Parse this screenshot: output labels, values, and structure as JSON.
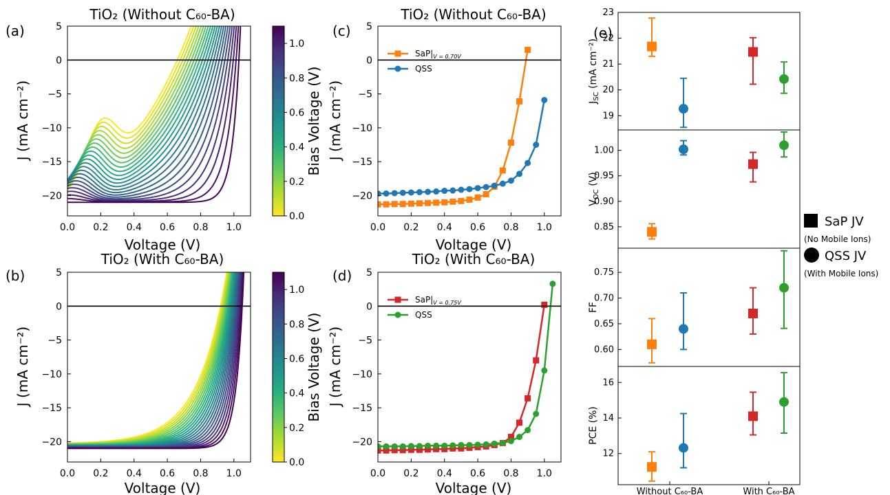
{
  "chart_data": [
    {
      "panel": "(a)",
      "type": "line",
      "title": "TiO₂ (Without C₆₀-BA)",
      "xlabel": "Voltage (V)",
      "ylabel": "J (mA cm⁻²)",
      "xlim": [
        0,
        1.1
      ],
      "ylim": [
        -23,
        5
      ],
      "xticks": [
        "0.0",
        "0.2",
        "0.4",
        "0.6",
        "0.8",
        "1.0"
      ],
      "yticks": [
        "5",
        "0",
        "−5",
        "−10",
        "−15",
        "−20"
      ],
      "xtick_values": [
        0,
        0.2,
        0.4,
        0.6,
        0.8,
        1.0
      ],
      "ytick_values": [
        5,
        0,
        -5,
        -10,
        -15,
        -20
      ],
      "colorbar": {
        "label": "Bias Voltage (V)",
        "ticks": [
          "0.0",
          "0.2",
          "0.4",
          "0.6",
          "0.8",
          "1.0"
        ],
        "tick_values": [
          0,
          0.2,
          0.4,
          0.6,
          0.8,
          1.0
        ],
        "range": [
          0,
          1.1
        ],
        "colormap": "viridis_r"
      },
      "family": {
        "bias_start": 0.0,
        "bias_step": 0.05,
        "bias_count": 23,
        "voc_first": 0.66,
        "voc_last": 1.03,
        "jsc_first": -19.8,
        "jsc_last": -21.0,
        "steep_first": 0.48,
        "steep_last": 0.045,
        "knee_first": 0.22,
        "knee_last": 0.0,
        "knee_amp_first": 11,
        "knee_amp_last": 0
      },
      "zero_line": 0
    },
    {
      "panel": "(b)",
      "type": "line",
      "title": "TiO₂ (With C₆₀-BA)",
      "xlabel": "Voltage (V)",
      "ylabel": "J (mA cm⁻²)",
      "xlim": [
        0,
        1.1
      ],
      "ylim": [
        -23,
        5
      ],
      "xticks": [
        "0.0",
        "0.2",
        "0.4",
        "0.6",
        "0.8",
        "1.0"
      ],
      "yticks": [
        "5",
        "0",
        "−5",
        "−10",
        "−15",
        "−20"
      ],
      "xtick_values": [
        0,
        0.2,
        0.4,
        0.6,
        0.8,
        1.0
      ],
      "ytick_values": [
        5,
        0,
        -5,
        -10,
        -15,
        -20
      ],
      "colorbar": {
        "label": "Bias Voltage (V)",
        "ticks": [
          "0.0",
          "0.2",
          "0.4",
          "0.6",
          "0.8",
          "1.0"
        ],
        "tick_values": [
          0,
          0.2,
          0.4,
          0.6,
          0.8,
          1.0
        ],
        "range": [
          0,
          1.1
        ],
        "colormap": "viridis_r"
      },
      "family": {
        "bias_start": 0.0,
        "bias_step": 0.05,
        "bias_count": 23,
        "voc_first": 0.92,
        "voc_last": 1.05,
        "jsc_first": -20.2,
        "jsc_last": -21.0,
        "steep_first": 0.17,
        "steep_last": 0.045,
        "knee_first": 0.0,
        "knee_last": 0.0,
        "knee_amp_first": 0,
        "knee_amp_last": 0
      },
      "zero_line": 0
    },
    {
      "panel": "(c)",
      "type": "line",
      "title": "TiO₂ (Without C₆₀-BA)",
      "xlabel": "Voltage (V)",
      "ylabel": "J (mA cm⁻²)",
      "xlim": [
        0,
        1.1
      ],
      "ylim": [
        -23,
        5
      ],
      "xticks": [
        "0.0",
        "0.2",
        "0.4",
        "0.6",
        "0.8",
        "1.0"
      ],
      "yticks": [
        "5",
        "0",
        "−5",
        "−10",
        "−15",
        "−20"
      ],
      "xtick_values": [
        0,
        0.2,
        0.4,
        0.6,
        0.8,
        1.0
      ],
      "ytick_values": [
        5,
        0,
        -5,
        -10,
        -15,
        -20
      ],
      "legend_position": "upper-left",
      "zero_line": 0,
      "series": [
        {
          "name": "SaP|V = 0.70V",
          "legend_main": "SaP|",
          "legend_sub": "V = 0.70V",
          "color": "#ff7f0e",
          "marker": "square",
          "x": [
            0.0,
            0.05,
            0.1,
            0.15,
            0.2,
            0.25,
            0.3,
            0.35,
            0.4,
            0.45,
            0.5,
            0.55,
            0.6,
            0.65,
            0.7,
            0.75,
            0.8,
            0.85,
            0.9
          ],
          "y": [
            -21.3,
            -21.3,
            -21.25,
            -21.25,
            -21.2,
            -21.15,
            -21.1,
            -21.05,
            -21.0,
            -20.9,
            -20.8,
            -20.6,
            -20.3,
            -19.8,
            -18.7,
            -16.3,
            -12.2,
            -6.1,
            1.5
          ]
        },
        {
          "name": "QSS",
          "legend_main": "QSS",
          "legend_sub": "",
          "color": "#1f77b4",
          "marker": "circle",
          "x": [
            0.0,
            0.05,
            0.1,
            0.15,
            0.2,
            0.25,
            0.3,
            0.35,
            0.4,
            0.45,
            0.5,
            0.55,
            0.6,
            0.65,
            0.7,
            0.75,
            0.8,
            0.85,
            0.9,
            0.95,
            1.0
          ],
          "y": [
            -19.7,
            -19.7,
            -19.65,
            -19.6,
            -19.55,
            -19.5,
            -19.45,
            -19.4,
            -19.3,
            -19.25,
            -19.15,
            -19.05,
            -18.9,
            -18.75,
            -18.55,
            -18.25,
            -17.8,
            -16.8,
            -15.2,
            -12.5,
            -5.9
          ]
        }
      ]
    },
    {
      "panel": "(d)",
      "type": "line",
      "title": "TiO₂ (With C₆₀-BA)",
      "xlabel": "Voltage (V)",
      "ylabel": "J (mA cm⁻²)",
      "xlim": [
        0,
        1.1
      ],
      "ylim": [
        -23,
        5
      ],
      "xticks": [
        "0.0",
        "0.2",
        "0.4",
        "0.6",
        "0.8",
        "1.0"
      ],
      "yticks": [
        "5",
        "0",
        "−5",
        "−10",
        "−15",
        "−20"
      ],
      "xtick_values": [
        0,
        0.2,
        0.4,
        0.6,
        0.8,
        1.0
      ],
      "ytick_values": [
        5,
        0,
        -5,
        -10,
        -15,
        -20
      ],
      "legend_position": "upper-left",
      "zero_line": 0,
      "series": [
        {
          "name": "SaP|V = 0.75V",
          "legend_main": "SaP|",
          "legend_sub": "V = 0.75V",
          "color": "#d62728",
          "marker": "square",
          "x": [
            0.0,
            0.05,
            0.1,
            0.15,
            0.2,
            0.25,
            0.3,
            0.35,
            0.4,
            0.45,
            0.5,
            0.55,
            0.6,
            0.65,
            0.7,
            0.75,
            0.8,
            0.85,
            0.9,
            0.95,
            1.0
          ],
          "y": [
            -21.3,
            -21.3,
            -21.25,
            -21.25,
            -21.2,
            -21.2,
            -21.15,
            -21.1,
            -21.1,
            -21.0,
            -21.0,
            -20.9,
            -20.8,
            -20.7,
            -20.5,
            -20.2,
            -19.3,
            -17.2,
            -13.6,
            -8.0,
            0.2
          ]
        },
        {
          "name": "QSS",
          "legend_main": "QSS",
          "legend_sub": "",
          "color": "#2ca02c",
          "marker": "circle",
          "x": [
            0.0,
            0.05,
            0.1,
            0.15,
            0.2,
            0.25,
            0.3,
            0.35,
            0.4,
            0.45,
            0.5,
            0.55,
            0.6,
            0.65,
            0.7,
            0.75,
            0.8,
            0.85,
            0.9,
            0.95,
            1.0,
            1.05
          ],
          "y": [
            -20.7,
            -20.7,
            -20.7,
            -20.7,
            -20.65,
            -20.65,
            -20.6,
            -20.6,
            -20.6,
            -20.55,
            -20.5,
            -20.5,
            -20.45,
            -20.4,
            -20.3,
            -20.2,
            -19.9,
            -19.3,
            -18.3,
            -15.9,
            -9.5,
            3.3
          ]
        }
      ]
    },
    {
      "panel": "(e)",
      "type": "scatter",
      "categories": [
        "Without C₆₀-BA",
        "With C₆₀-BA"
      ],
      "legend": [
        {
          "marker": "square",
          "label": "SaP JV",
          "note": "(No Mobile Ions)"
        },
        {
          "marker": "circle",
          "label": "QSS JV",
          "note": "(With Mobile Ions)"
        }
      ],
      "subplots": [
        {
          "name": "Jsc",
          "ylabel_main": "J",
          "ylabel_sub": "SC",
          "ylabel_unit": " (mA cm⁻²)",
          "ylim": [
            18.45,
            23.0
          ],
          "yticks": [
            "19",
            "20",
            "21",
            "22",
            "23"
          ],
          "ytick_values": [
            19,
            20,
            21,
            22,
            23
          ],
          "points": [
            {
              "group": "Without C₆₀-BA",
              "method": "SaP JV",
              "color": "#ff7f0e",
              "marker": "square",
              "value": 21.68,
              "low": 21.3,
              "high": 22.78
            },
            {
              "group": "Without C₆₀-BA",
              "method": "QSS JV",
              "color": "#1f77b4",
              "marker": "circle",
              "value": 19.27,
              "low": 18.55,
              "high": 20.45
            },
            {
              "group": "With C₆₀-BA",
              "method": "SaP JV",
              "color": "#d62728",
              "marker": "square",
              "value": 21.47,
              "low": 20.22,
              "high": 22.02
            },
            {
              "group": "With C₆₀-BA",
              "method": "QSS JV",
              "color": "#2ca02c",
              "marker": "circle",
              "value": 20.42,
              "low": 19.87,
              "high": 21.08
            }
          ]
        },
        {
          "name": "Voc",
          "ylabel_main": "V",
          "ylabel_sub": "OC",
          "ylabel_unit": " (V)",
          "ylim": [
            0.808,
            1.04
          ],
          "yticks": [
            "0.85",
            "0.90",
            "0.95",
            "1.00"
          ],
          "ytick_values": [
            0.85,
            0.9,
            0.95,
            1.0
          ],
          "points": [
            {
              "group": "Without C₆₀-BA",
              "method": "SaP JV",
              "color": "#ff7f0e",
              "marker": "square",
              "value": 0.84,
              "low": 0.826,
              "high": 0.856
            },
            {
              "group": "Without C₆₀-BA",
              "method": "QSS JV",
              "color": "#1f77b4",
              "marker": "circle",
              "value": 1.002,
              "low": 0.991,
              "high": 1.019
            },
            {
              "group": "With C₆₀-BA",
              "method": "SaP JV",
              "color": "#d62728",
              "marker": "square",
              "value": 0.973,
              "low": 0.938,
              "high": 0.996
            },
            {
              "group": "With C₆₀-BA",
              "method": "QSS JV",
              "color": "#2ca02c",
              "marker": "circle",
              "value": 1.01,
              "low": 0.987,
              "high": 1.036
            }
          ]
        },
        {
          "name": "FF",
          "ylabel_main": "FF",
          "ylabel_sub": "",
          "ylabel_unit": "",
          "ylim": [
            0.567,
            0.797
          ],
          "yticks": [
            "0.60",
            "0.65",
            "0.70",
            "0.75"
          ],
          "ytick_values": [
            0.6,
            0.65,
            0.7,
            0.75
          ],
          "points": [
            {
              "group": "Without C₆₀-BA",
              "method": "SaP JV",
              "color": "#ff7f0e",
              "marker": "square",
              "value": 0.61,
              "low": 0.574,
              "high": 0.66
            },
            {
              "group": "Without C₆₀-BA",
              "method": "QSS JV",
              "color": "#1f77b4",
              "marker": "circle",
              "value": 0.64,
              "low": 0.6,
              "high": 0.71
            },
            {
              "group": "With C₆₀-BA",
              "method": "SaP JV",
              "color": "#d62728",
              "marker": "square",
              "value": 0.67,
              "low": 0.63,
              "high": 0.72
            },
            {
              "group": "With C₆₀-BA",
              "method": "QSS JV",
              "color": "#2ca02c",
              "marker": "circle",
              "value": 0.72,
              "low": 0.641,
              "high": 0.792
            }
          ]
        },
        {
          "name": "PCE",
          "ylabel_main": "PCE (%)",
          "ylabel_sub": "",
          "ylabel_unit": "",
          "ylim": [
            10.25,
            16.9
          ],
          "yticks": [
            "12",
            "14",
            "16"
          ],
          "ytick_values": [
            12,
            14,
            16
          ],
          "points": [
            {
              "group": "Without C₆₀-BA",
              "method": "SaP JV",
              "color": "#ff7f0e",
              "marker": "square",
              "value": 11.25,
              "low": 10.45,
              "high": 12.1
            },
            {
              "group": "Without C₆₀-BA",
              "method": "QSS JV",
              "color": "#1f77b4",
              "marker": "circle",
              "value": 12.32,
              "low": 11.2,
              "high": 14.25
            },
            {
              "group": "With C₆₀-BA",
              "method": "SaP JV",
              "color": "#d62728",
              "marker": "square",
              "value": 14.1,
              "low": 13.05,
              "high": 15.45
            },
            {
              "group": "With C₆₀-BA",
              "method": "QSS JV",
              "color": "#2ca02c",
              "marker": "circle",
              "value": 14.9,
              "low": 13.15,
              "high": 16.55
            }
          ]
        }
      ]
    }
  ]
}
